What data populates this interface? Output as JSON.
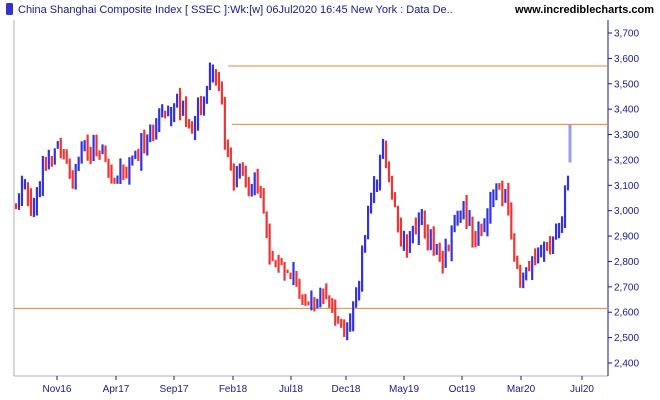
{
  "header": {
    "title": "China Shanghai Composite Index [ SSEC ]:Wk:[w]  06Jul2020 16:45 New York : Data De..",
    "site": "www.incrediblecharts.com"
  },
  "colors": {
    "up": "#3333dd",
    "down": "#ee3333",
    "support_line": "#e08a3a",
    "header_icon": "#3333cc",
    "last_bar": "#9999ee"
  },
  "chart_data": {
    "type": "bar",
    "title": "China Shanghai Composite Index [ SSEC ]:Wk:[w]  06Jul2020 16:45 New York : Data De..",
    "x_tick_labels": [
      "Nov16",
      "Apr17",
      "Sep17",
      "Feb18",
      "Jul18",
      "Dec18",
      "May19",
      "Oct19",
      "Mar20",
      "Jul20"
    ],
    "y_tick_labels": [
      "2,400",
      "2,500",
      "2,600",
      "2,700",
      "2,800",
      "2,900",
      "3,000",
      "3,100",
      "3,200",
      "3,300",
      "3,400",
      "3,500",
      "3,600",
      "3,700"
    ],
    "ylim": [
      2350,
      3780
    ],
    "grid": false,
    "horizontal_lines": [
      3570,
      3340,
      2615
    ],
    "last_bar": {
      "low": 3190,
      "high": 3340
    },
    "price_path": [
      {
        "t": 0,
        "v": 3030
      },
      {
        "t": 2,
        "v": 3110
      },
      {
        "t": 5,
        "v": 3020
      },
      {
        "t": 8,
        "v": 3180
      },
      {
        "t": 12,
        "v": 3260
      },
      {
        "t": 15,
        "v": 3120
      },
      {
        "t": 19,
        "v": 3240
      },
      {
        "t": 23,
        "v": 3270
      },
      {
        "t": 27,
        "v": 3110
      },
      {
        "t": 31,
        "v": 3160
      },
      {
        "t": 35,
        "v": 3260
      },
      {
        "t": 39,
        "v": 3340
      },
      {
        "t": 42,
        "v": 3370
      },
      {
        "t": 45,
        "v": 3430
      },
      {
        "t": 48,
        "v": 3320
      },
      {
        "t": 51,
        "v": 3410
      },
      {
        "t": 54,
        "v": 3520
      },
      {
        "t": 56,
        "v": 3540
      },
      {
        "t": 58,
        "v": 3280
      },
      {
        "t": 60,
        "v": 3130
      },
      {
        "t": 62,
        "v": 3180
      },
      {
        "t": 65,
        "v": 3120
      },
      {
        "t": 68,
        "v": 3080
      },
      {
        "t": 70,
        "v": 2860
      },
      {
        "t": 73,
        "v": 2800
      },
      {
        "t": 76,
        "v": 2740
      },
      {
        "t": 79,
        "v": 2690
      },
      {
        "t": 82,
        "v": 2620
      },
      {
        "t": 85,
        "v": 2700
      },
      {
        "t": 88,
        "v": 2590
      },
      {
        "t": 91,
        "v": 2490
      },
      {
        "t": 94,
        "v": 2640
      },
      {
        "t": 97,
        "v": 2940
      },
      {
        "t": 99,
        "v": 3080
      },
      {
        "t": 102,
        "v": 3260
      },
      {
        "t": 104,
        "v": 3100
      },
      {
        "t": 106,
        "v": 2900
      },
      {
        "t": 109,
        "v": 2860
      },
      {
        "t": 112,
        "v": 2980
      },
      {
        "t": 115,
        "v": 2870
      },
      {
        "t": 118,
        "v": 2790
      },
      {
        "t": 121,
        "v": 2920
      },
      {
        "t": 124,
        "v": 3010
      },
      {
        "t": 127,
        "v": 2900
      },
      {
        "t": 130,
        "v": 2960
      },
      {
        "t": 133,
        "v": 3080
      },
      {
        "t": 136,
        "v": 3040
      },
      {
        "t": 138,
        "v": 2780
      },
      {
        "t": 140,
        "v": 2720
      },
      {
        "t": 142,
        "v": 2780
      },
      {
        "t": 145,
        "v": 2850
      },
      {
        "t": 148,
        "v": 2830
      },
      {
        "t": 151,
        "v": 2940
      },
      {
        "t": 153,
        "v": 3160
      }
    ]
  }
}
